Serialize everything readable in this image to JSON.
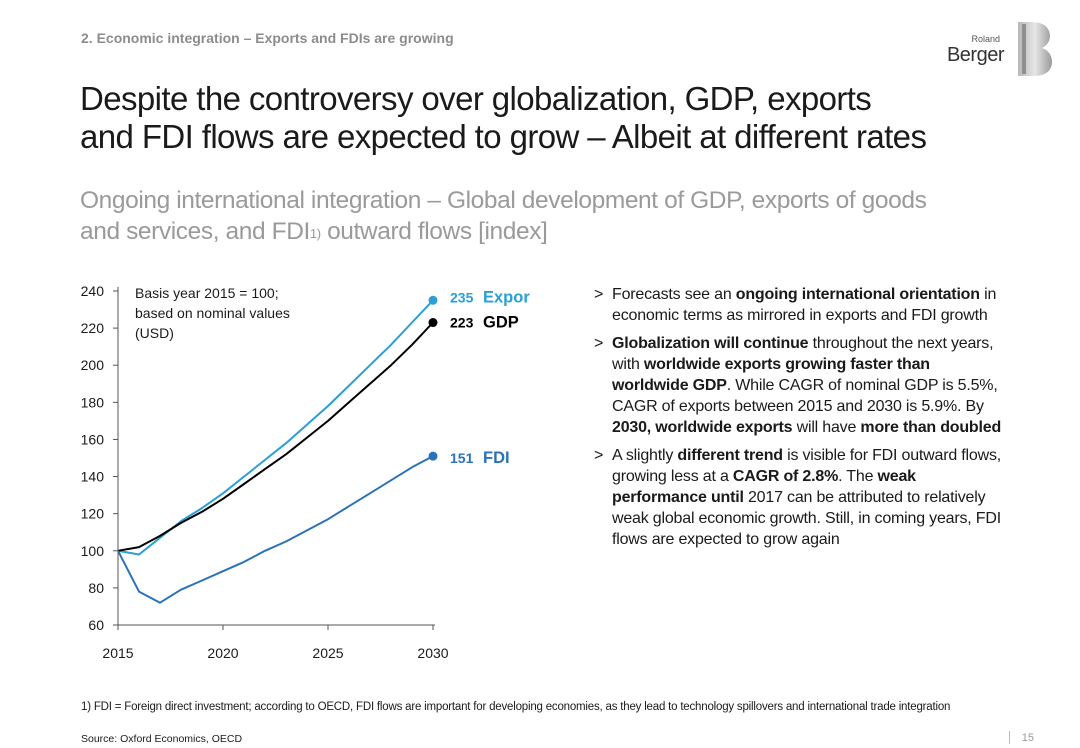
{
  "header": {
    "section": "2. Economic integration – Exports and FDIs are growing",
    "logo_small": "Roland",
    "logo_big": "Berger"
  },
  "title_line1": "Despite the controversy over globalization, GDP, exports",
  "title_line2": "and FDI flows are expected to grow – Albeit at different rates",
  "subtitle_text": "Ongoing international integration – Global development of GDP, exports of goods and services, and FDI",
  "subtitle_sup": "1)",
  "subtitle_tail": " outward flows [index]",
  "chart_data": {
    "type": "line",
    "annotation": [
      "Basis year 2015 = 100;",
      "based on nominal values",
      "(USD)"
    ],
    "xlim": [
      2015,
      2030
    ],
    "ylim": [
      60,
      240
    ],
    "x_ticks": [
      "2015",
      "2020",
      "2025",
      "2030"
    ],
    "y_ticks": [
      "60",
      "80",
      "100",
      "120",
      "140",
      "160",
      "180",
      "200",
      "220",
      "240"
    ],
    "grid": false,
    "legend": "end-of-line labels",
    "series": [
      {
        "name": "Exports",
        "end_label": "235",
        "color": "#2a9fd6",
        "x": [
          2015,
          2016,
          2017,
          2018,
          2019,
          2020,
          2021,
          2022,
          2023,
          2024,
          2025,
          2026,
          2027,
          2028,
          2029,
          2030
        ],
        "y": [
          100,
          98,
          107,
          116,
          123,
          131,
          140,
          149,
          158,
          168,
          178,
          189,
          200,
          211,
          223,
          235
        ]
      },
      {
        "name": "GDP",
        "end_label": "223",
        "color": "#000000",
        "x": [
          2015,
          2016,
          2017,
          2018,
          2019,
          2020,
          2021,
          2022,
          2023,
          2024,
          2025,
          2026,
          2027,
          2028,
          2029,
          2030
        ],
        "y": [
          100,
          102,
          108,
          115,
          121,
          128,
          136,
          144,
          152,
          161,
          170,
          180,
          190,
          200,
          211,
          223
        ]
      },
      {
        "name": "FDI",
        "end_label": "151",
        "color": "#2c72b8",
        "x": [
          2015,
          2016,
          2017,
          2018,
          2019,
          2020,
          2021,
          2022,
          2023,
          2024,
          2025,
          2026,
          2027,
          2028,
          2029,
          2030
        ],
        "y": [
          100,
          78,
          72,
          79,
          84,
          89,
          94,
          100,
          105,
          111,
          117,
          124,
          131,
          138,
          145,
          151
        ]
      }
    ]
  },
  "bullets": [
    {
      "mark": ">",
      "parts": [
        {
          "t": "Forecasts see an "
        },
        {
          "t": "ongoing international orientation",
          "b": true
        },
        {
          "t": " in economic terms as mirrored in exports and FDI growth"
        }
      ]
    },
    {
      "mark": ">",
      "parts": [
        {
          "t": "Globalization will continue",
          "b": true
        },
        {
          "t": " throughout the next years, with "
        },
        {
          "t": "worldwide exports growing faster than worldwide GDP",
          "b": true
        },
        {
          "t": ". While CAGR of nominal GDP is 5.5%, CAGR of exports between 2015 and 2030 is 5.9%. By "
        },
        {
          "t": "2030, worldwide exports",
          "b": true
        },
        {
          "t": " will have "
        },
        {
          "t": "more than doubled",
          "b": true
        }
      ]
    },
    {
      "mark": ">",
      "parts": [
        {
          "t": "A slightly "
        },
        {
          "t": "different trend",
          "b": true
        },
        {
          "t": " is visible for FDI outward flows, growing less at a "
        },
        {
          "t": "CAGR of 2.8%",
          "b": true
        },
        {
          "t": ". The "
        },
        {
          "t": "weak performance until",
          "b": true
        },
        {
          "t": " 2017 can be attributed to relatively weak global economic growth. Still, in coming years, FDI flows are expected to grow again"
        }
      ]
    }
  ],
  "footnote": "1) FDI = Foreign direct investment; according to OECD, FDI flows are important for developing economies, as they lead to technology spillovers and international trade integration",
  "source": "Source: Oxford Economics, OECD",
  "page_number": "15"
}
